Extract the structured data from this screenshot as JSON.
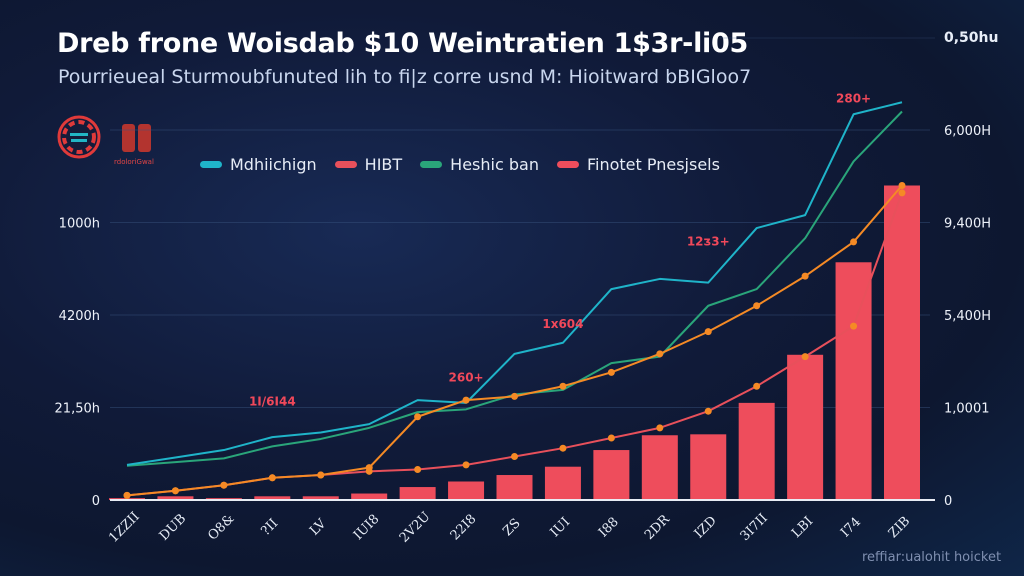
{
  "header": {
    "title": "Dreb frone Woisdab $10 Weintratien 1$3r-li05",
    "subtitle": "Pourrieueal Sturmoubfunuted lih to fi|z corre usnd M: Hioitward bBIGloo7",
    "top_right_label": "0,50hu"
  },
  "logo": {
    "icon": "emblem-logo-icon",
    "caption": "rdoloriGwal"
  },
  "watermark": "reffiar:ualohit hoicket",
  "colors": {
    "background": "#101a38",
    "series_cyan": "#1fb4c9",
    "series_red": "#e8505b",
    "series_green": "#2aa57a",
    "bars": "#ee4d5c",
    "orange": "#f58a25",
    "annotation": "#f0485a"
  },
  "chart_data": {
    "type": "bar",
    "title": "Dreb frone Woisdab $10 Weintratien 1$3r-li05",
    "subtitle": "Pourrieueal Sturmoubfunuted lih to fi|z corre usnd M: Hioitward bBIGloo7",
    "xlabel": "",
    "ylabel": "",
    "legend_position": "top",
    "grid": true,
    "categories": [
      "1ZZII",
      "DUB",
      "O8&",
      "?II",
      "LV",
      "IUI8",
      "2V2U",
      "22I8",
      "ZS",
      "IUI",
      "I88",
      "2DR",
      "IZD",
      "3I7II",
      "LBI",
      "I74",
      "ZIB"
    ],
    "left_axis": {
      "ticks": [
        "0",
        "21,50h",
        "4200h",
        "1000h"
      ],
      "range": [
        0,
        4
      ]
    },
    "right_axis": {
      "ticks": [
        "0",
        "1,0001",
        "5,400H",
        "9,400H",
        "6,000H"
      ],
      "range": [
        0,
        4
      ]
    },
    "legend": [
      {
        "name": "Mdhiichign",
        "color": "#1fb4c9"
      },
      {
        "name": "HIBT",
        "color": "#e8505b"
      },
      {
        "name": "Heshic ban",
        "color": "#2aa57a"
      },
      {
        "name": "Finotet Pnesjsels",
        "color": "#ee4d5c"
      }
    ],
    "series": [
      {
        "name": "Finotet Pnesjsels",
        "kind": "bar",
        "color": "#ee4d5c",
        "values": [
          0.02,
          0.04,
          0.02,
          0.04,
          0.04,
          0.07,
          0.14,
          0.2,
          0.27,
          0.36,
          0.54,
          0.7,
          0.71,
          1.05,
          1.57,
          2.57,
          3.4
        ]
      },
      {
        "name": "HIBT",
        "kind": "line",
        "color": "#e8505b",
        "markers": true,
        "values": [
          0.05,
          0.1,
          0.16,
          0.24,
          0.27,
          0.31,
          0.33,
          0.38,
          0.47,
          0.56,
          0.67,
          0.78,
          0.96,
          1.23,
          1.55,
          1.88,
          3.32
        ]
      },
      {
        "name": "Mdhiichign",
        "kind": "line",
        "color": "#1fb4c9",
        "values": [
          0.38,
          0.46,
          0.54,
          0.68,
          0.73,
          0.82,
          1.08,
          1.05,
          1.58,
          1.7,
          2.28,
          2.39,
          2.35,
          2.94,
          3.08,
          4.17,
          4.3
        ]
      },
      {
        "name": "Heshic ban",
        "kind": "line",
        "color": "#2aa57a",
        "values": [
          0.37,
          0.41,
          0.45,
          0.58,
          0.66,
          0.78,
          0.95,
          0.98,
          1.14,
          1.19,
          1.48,
          1.55,
          2.1,
          2.28,
          2.83,
          3.66,
          4.2
        ]
      },
      {
        "name": "orange-trend",
        "kind": "line",
        "color": "#f58a25",
        "markers": true,
        "values": [
          0.05,
          0.1,
          0.16,
          0.24,
          0.27,
          0.35,
          0.9,
          1.08,
          1.12,
          1.23,
          1.38,
          1.58,
          1.82,
          2.1,
          2.42,
          2.79,
          3.4
        ]
      }
    ],
    "annotations": [
      {
        "text": "1I/6I44",
        "x_index": 3,
        "y": 1.02
      },
      {
        "text": "260+",
        "x_index": 7,
        "y": 1.28
      },
      {
        "text": "1x604",
        "x_index": 9,
        "y": 1.86
      },
      {
        "text": "12ᴣ3+",
        "x_index": 12,
        "y": 2.75
      },
      {
        "text": "280+",
        "x_index": 15,
        "y": 4.3
      }
    ]
  }
}
